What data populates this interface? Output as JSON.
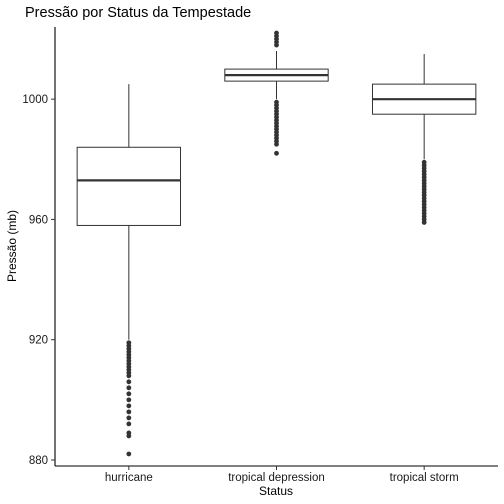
{
  "chart_data": {
    "type": "boxplot",
    "title": "Pressão por Status da Tempestade",
    "xlabel": "Status",
    "ylabel": "Pressão (mb)",
    "ylim": [
      878,
      1024
    ],
    "yticks": [
      880,
      920,
      960,
      1000
    ],
    "grid": false,
    "categories": [
      "hurricane",
      "tropical depression",
      "tropical storm"
    ],
    "boxes": [
      {
        "category": "hurricane",
        "whisker_low": 920,
        "q1": 958,
        "median": 973,
        "q3": 984,
        "whisker_high": 1005,
        "outliers": [
          919,
          918,
          917,
          916,
          915,
          914,
          913,
          912,
          911,
          910,
          909,
          908,
          906,
          904,
          902,
          900,
          898,
          896,
          894,
          892,
          889,
          888,
          882
        ]
      },
      {
        "category": "tropical depression",
        "whisker_low": 1000,
        "q1": 1006,
        "median": 1008,
        "q3": 1010,
        "whisker_high": 1016,
        "outliers": [
          1022,
          1021,
          1020,
          1019,
          1018,
          999,
          998,
          997,
          996,
          995,
          994,
          993,
          992,
          991,
          990,
          989,
          988,
          987,
          986,
          985,
          982
        ]
      },
      {
        "category": "tropical storm",
        "whisker_low": 980,
        "q1": 995,
        "median": 1000,
        "q3": 1005,
        "whisker_high": 1015,
        "outliers": [
          979,
          978,
          977,
          976,
          975,
          974,
          973,
          972,
          971,
          970,
          969,
          968,
          967,
          966,
          965,
          964,
          963,
          962,
          961,
          960,
          959
        ]
      }
    ],
    "colors": {
      "box_stroke": "#333333",
      "median": "#333333",
      "outlier": "#333333",
      "axis": "#000000"
    }
  }
}
